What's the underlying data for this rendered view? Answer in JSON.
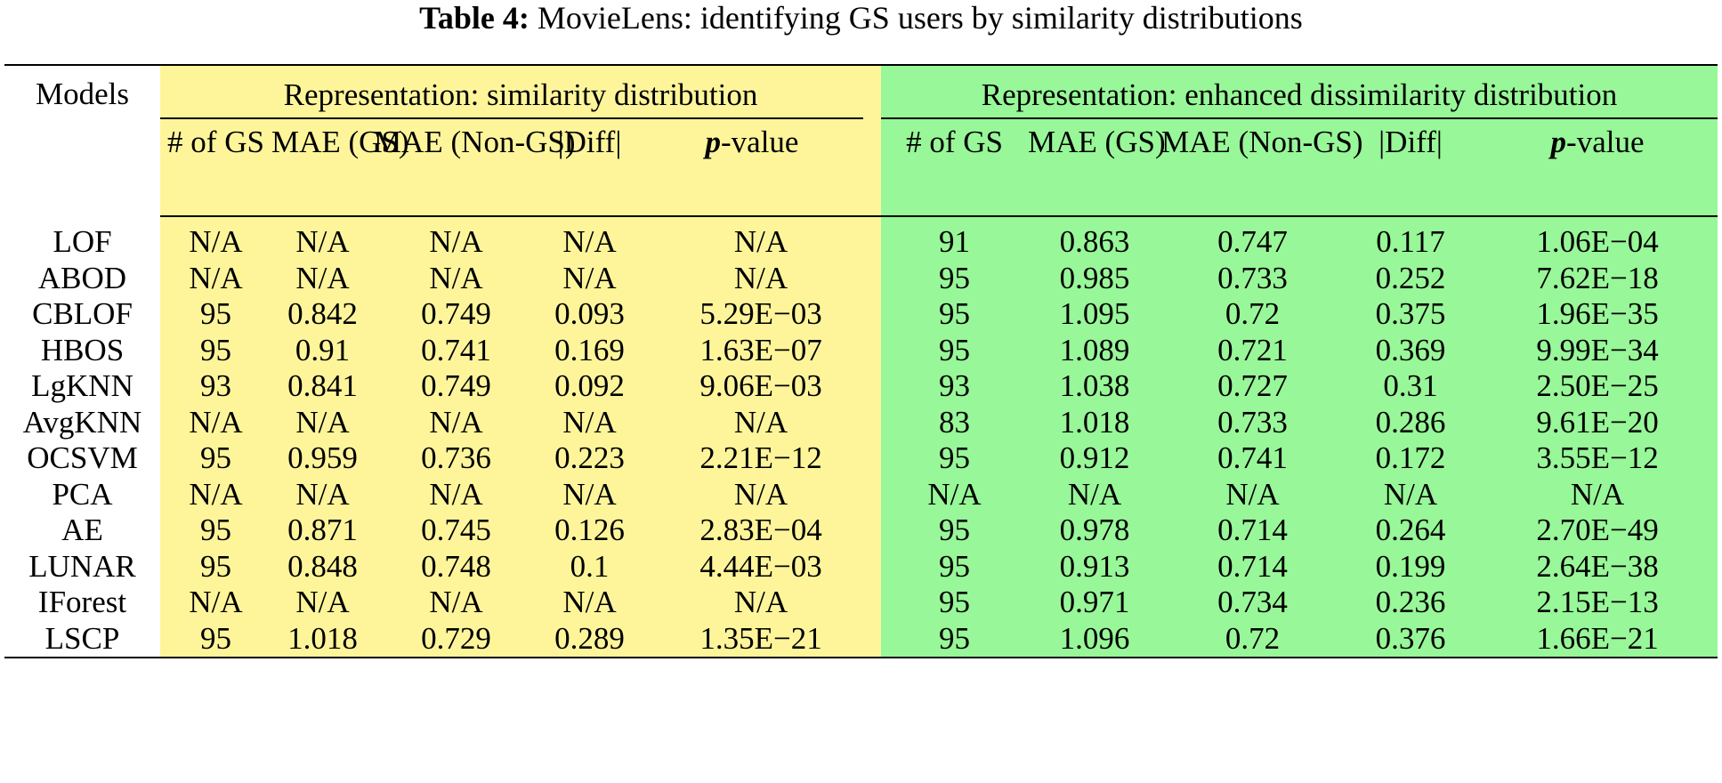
{
  "caption": {
    "label": "Table 4:",
    "text": " MovieLens: identifying GS users by similarity distributions"
  },
  "headers": {
    "models": "Models",
    "group_similarity": "Representation: similarity distribution",
    "group_enhanced": "Representation: enhanced dissimilarity distribution",
    "sim_cols": [
      "# of GS",
      "MAE (GS)",
      "MAE (Non-GS)",
      "|Diff|",
      "p-value"
    ],
    "enh_cols": [
      "# of GS",
      "MAE (GS)",
      "MAE (Non-GS)",
      "|Diff|",
      "p-value"
    ],
    "p_letter": "p",
    "p_suffix": "-value"
  },
  "colors": {
    "yellow": "#fef59b",
    "green": "#98f798"
  },
  "rows": [
    {
      "model": "LOF",
      "sim": [
        "N/A",
        "N/A",
        "N/A",
        "N/A",
        "N/A"
      ],
      "sim_bold": false,
      "enh": [
        "91",
        "0.863",
        "0.747",
        "0.117",
        "1.06E−04"
      ],
      "enh_bold": false
    },
    {
      "model": "ABOD",
      "sim": [
        "N/A",
        "N/A",
        "N/A",
        "N/A",
        "N/A"
      ],
      "sim_bold": false,
      "enh": [
        "95",
        "0.985",
        "0.733",
        "0.252",
        "7.62E−18"
      ],
      "enh_bold": false
    },
    {
      "model": "CBLOF",
      "sim": [
        "95",
        "0.842",
        "0.749",
        "0.093",
        "5.29E−03"
      ],
      "sim_bold": false,
      "enh": [
        "95",
        "1.095",
        "0.72",
        "0.375",
        "1.96E−35"
      ],
      "enh_bold": true
    },
    {
      "model": "HBOS",
      "sim": [
        "95",
        "0.91",
        "0.741",
        "0.169",
        "1.63E−07"
      ],
      "sim_bold": true,
      "enh": [
        "95",
        "1.089",
        "0.721",
        "0.369",
        "9.99E−34"
      ],
      "enh_bold": true
    },
    {
      "model": "LgKNN",
      "sim": [
        "93",
        "0.841",
        "0.749",
        "0.092",
        "9.06E−03"
      ],
      "sim_bold": false,
      "enh": [
        "93",
        "1.038",
        "0.727",
        "0.31",
        "2.50E−25"
      ],
      "enh_bold": false
    },
    {
      "model": "AvgKNN",
      "sim": [
        "N/A",
        "N/A",
        "N/A",
        "N/A",
        "N/A"
      ],
      "sim_bold": false,
      "enh": [
        "83",
        "1.018",
        "0.733",
        "0.286",
        "9.61E−20"
      ],
      "enh_bold": false
    },
    {
      "model": "OCSVM",
      "sim": [
        "95",
        "0.959",
        "0.736",
        "0.223",
        "2.21E−12"
      ],
      "sim_bold": true,
      "enh": [
        "95",
        "0.912",
        "0.741",
        "0.172",
        "3.55E−12"
      ],
      "enh_bold": false
    },
    {
      "model": "PCA",
      "sim": [
        "N/A",
        "N/A",
        "N/A",
        "N/A",
        "N/A"
      ],
      "sim_bold": false,
      "enh": [
        "N/A",
        "N/A",
        "N/A",
        "N/A",
        "N/A"
      ],
      "enh_bold": false
    },
    {
      "model": "AE",
      "sim": [
        "95",
        "0.871",
        "0.745",
        "0.126",
        "2.83E−04"
      ],
      "sim_bold": false,
      "enh": [
        "95",
        "0.978",
        "0.714",
        "0.264",
        "2.70E−49"
      ],
      "enh_bold": false
    },
    {
      "model": "LUNAR",
      "sim": [
        "95",
        "0.848",
        "0.748",
        "0.1",
        "4.44E−03"
      ],
      "sim_bold": false,
      "enh": [
        "95",
        "0.913",
        "0.714",
        "0.199",
        "2.64E−38"
      ],
      "enh_bold": false
    },
    {
      "model": "IForest",
      "sim": [
        "N/A",
        "N/A",
        "N/A",
        "N/A",
        "N/A"
      ],
      "sim_bold": false,
      "enh": [
        "95",
        "0.971",
        "0.734",
        "0.236",
        "2.15E−13"
      ],
      "enh_bold": false
    },
    {
      "model": "LSCP",
      "sim": [
        "95",
        "1.018",
        "0.729",
        "0.289",
        "1.35E−21"
      ],
      "sim_bold": true,
      "enh": [
        "95",
        "1.096",
        "0.72",
        "0.376",
        "1.66E−21"
      ],
      "enh_bold": true
    }
  ]
}
